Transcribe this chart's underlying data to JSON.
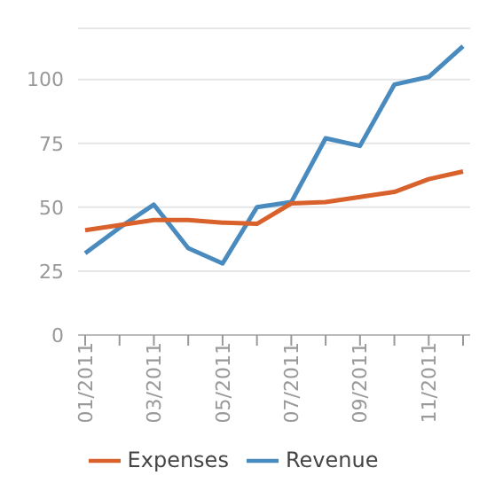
{
  "chart_data": {
    "type": "line",
    "categories": [
      "01/2011",
      null,
      "03/2011",
      null,
      "05/2011",
      null,
      "07/2011",
      null,
      "09/2011",
      null,
      "11/2011",
      null
    ],
    "series": [
      {
        "name": "Revenue",
        "color": "#4a8bbf",
        "values": [
          32,
          42,
          51,
          34,
          28,
          50,
          52,
          77,
          74,
          98,
          101,
          113
        ]
      },
      {
        "name": "Expenses",
        "color": "#d9612b",
        "values": [
          41,
          43,
          45,
          45,
          44,
          43.5,
          51.5,
          52,
          54,
          56,
          61,
          64
        ]
      }
    ],
    "ylim": [
      0,
      120
    ],
    "yticks": [
      0,
      25,
      50,
      75,
      100
    ],
    "grid": "y",
    "legend": "bottom",
    "marker": "none",
    "line_style": "solid"
  }
}
